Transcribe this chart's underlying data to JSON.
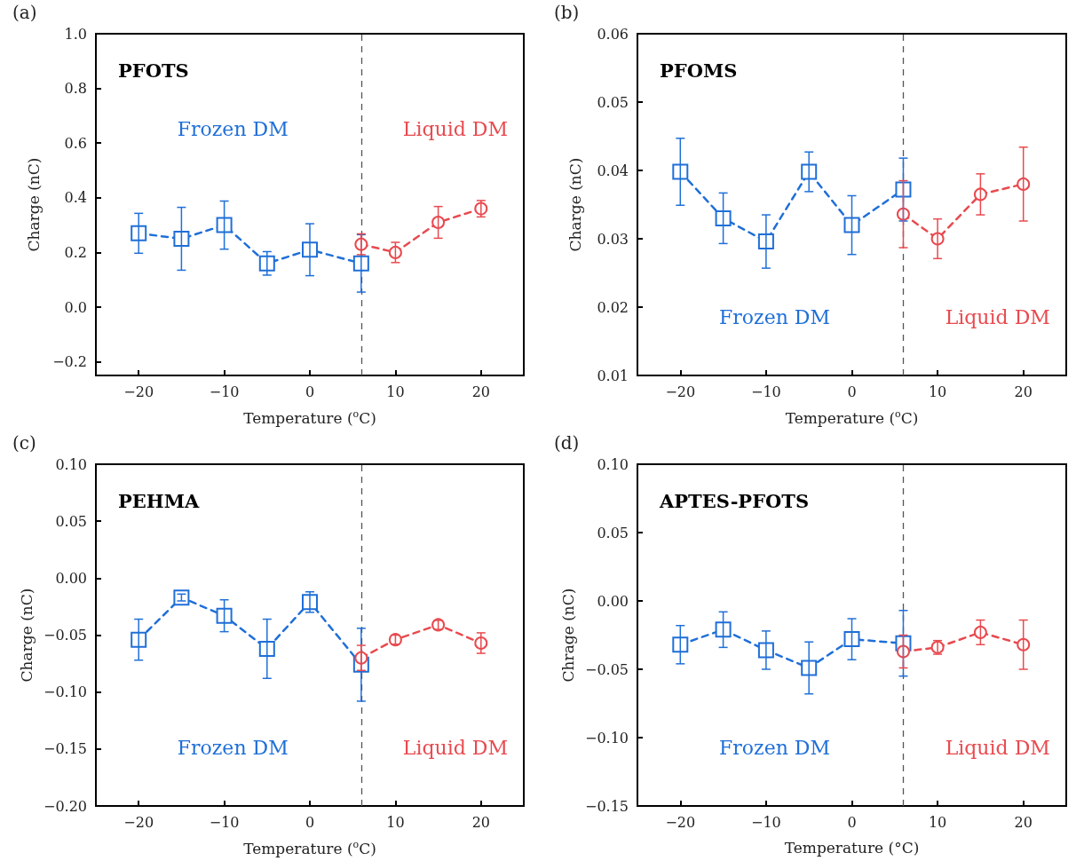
{
  "chart_data": [
    {
      "type": "line",
      "title": "PFOTS",
      "xlabel": "Temperature ($^{o}$C)",
      "ylabel": "Charge (nC)",
      "annotations": [
        "(a)",
        "Frozen DM",
        "Liquid DM"
      ],
      "xlim": [
        -25,
        25
      ],
      "xticks": [
        -20,
        -10,
        0,
        10,
        20
      ],
      "ylim": [
        -0.25,
        1.0
      ],
      "yticks": [
        {
          "value": -0.2,
          "label": "−0.2"
        },
        {
          "value": 0,
          "label": "0.0"
        },
        0.2,
        0.4,
        0.6,
        0.8,
        {
          "value": 1,
          "label": "1.0"
        }
      ],
      "line_style": "dashed",
      "grid": false,
      "ref_lines": [
        {
          "axis": "x",
          "value": 6,
          "color": "#555555",
          "line_style": "dashed"
        }
      ],
      "series": [
        {
          "color": "#1f6fd8",
          "marker": "square",
          "x": [
            -20,
            -15,
            -10,
            -5,
            0,
            6
          ],
          "values": [
            0.27,
            0.25,
            0.3,
            0.16,
            0.21,
            0.16
          ],
          "errors": [
            0.073,
            0.115,
            0.088,
            0.043,
            0.095,
            0.105
          ]
        },
        {
          "color": "#e84a4f",
          "marker": "circle",
          "x": [
            6,
            10,
            15,
            20
          ],
          "values": [
            0.23,
            0.2,
            0.31,
            0.36
          ],
          "errors": [
            0.038,
            0.037,
            0.058,
            0.03
          ]
        }
      ]
    },
    {
      "type": "line",
      "title": "PFOMS",
      "xlabel": "Temperature ($^{o}$C)",
      "ylabel": "Charge (nC)",
      "annotations": [
        "(b)",
        "Frozen DM",
        "Liquid DM"
      ],
      "xlim": [
        -25,
        25
      ],
      "xticks": [
        -20,
        -10,
        0,
        10,
        20
      ],
      "ylim": [
        0.01,
        0.06
      ],
      "yticks": [
        0.01,
        0.02,
        0.03,
        0.04,
        0.05,
        0.06
      ],
      "line_style": "dashed",
      "grid": false,
      "ref_lines": [
        {
          "axis": "x",
          "value": 6,
          "color": "#555555",
          "line_style": "dashed"
        }
      ],
      "series": [
        {
          "color": "#1f6fd8",
          "marker": "square",
          "x": [
            -20,
            -15,
            -10,
            -5,
            0,
            6
          ],
          "values": [
            0.0398,
            0.033,
            0.0296,
            0.0398,
            0.032,
            0.0372
          ],
          "errors": [
            0.0049,
            0.0037,
            0.0039,
            0.0029,
            0.0043,
            0.0046
          ]
        },
        {
          "color": "#e84a4f",
          "marker": "circle",
          "x": [
            6,
            10,
            15,
            20
          ],
          "values": [
            0.0336,
            0.03,
            0.0365,
            0.038
          ],
          "errors": [
            0.0049,
            0.0029,
            0.003,
            0.0054
          ]
        }
      ]
    },
    {
      "type": "line",
      "title": "PEHMA",
      "xlabel": "Temperature ($^{o}$C)",
      "ylabel": "Charge (nC)",
      "annotations": [
        "(c)",
        "Frozen DM",
        "Liquid DM"
      ],
      "xlim": [
        -25,
        25
      ],
      "xticks": [
        -20,
        -10,
        0,
        10,
        20
      ],
      "ylim": [
        -0.2,
        0.1
      ],
      "yticks": [
        {
          "value": -0.2,
          "label": "−0.20"
        },
        {
          "value": -0.15,
          "label": "−0.15"
        },
        {
          "value": -0.1,
          "label": "−0.10"
        },
        {
          "value": -0.05,
          "label": "−0.05"
        },
        {
          "value": 0,
          "label": "0.00"
        },
        0.05,
        {
          "value": 0.1,
          "label": "0.10"
        }
      ],
      "line_style": "dashed",
      "grid": false,
      "ref_lines": [
        {
          "axis": "x",
          "value": 6,
          "color": "#555555",
          "line_style": "dashed"
        }
      ],
      "series": [
        {
          "color": "#1f6fd8",
          "marker": "square",
          "x": [
            -20,
            -15,
            -10,
            -5,
            0,
            6
          ],
          "values": [
            -0.054,
            -0.017,
            -0.033,
            -0.062,
            -0.021,
            -0.076
          ],
          "errors": [
            0.018,
            0.003,
            0.014,
            0.026,
            0.009,
            0.032
          ]
        },
        {
          "color": "#e84a4f",
          "marker": "circle",
          "x": [
            6,
            10,
            15,
            20
          ],
          "values": [
            -0.07,
            -0.054,
            -0.041,
            -0.057
          ],
          "errors": [
            0.011,
            0.004,
            0.004,
            0.009
          ]
        }
      ]
    },
    {
      "type": "line",
      "title": "APTES-PFOTS",
      "xlabel": "Temperature (°C)",
      "ylabel": "Chrage (nC)",
      "annotations": [
        "(d)",
        "Frozen DM",
        "Liquid DM"
      ],
      "xlim": [
        -25,
        25
      ],
      "xticks": [
        -20,
        -10,
        0,
        10,
        20
      ],
      "ylim": [
        -0.15,
        0.1
      ],
      "yticks": [
        {
          "value": -0.15,
          "label": "−0.15"
        },
        {
          "value": -0.1,
          "label": "−0.10"
        },
        {
          "value": -0.05,
          "label": "−0.05"
        },
        {
          "value": 0,
          "label": "0.00"
        },
        0.05,
        {
          "value": 0.1,
          "label": "0.10"
        }
      ],
      "line_style": "dashed",
      "grid": false,
      "ref_lines": [
        {
          "axis": "x",
          "value": 6,
          "color": "#555555",
          "line_style": "dashed"
        }
      ],
      "series": [
        {
          "color": "#1f6fd8",
          "marker": "square",
          "x": [
            -20,
            -15,
            -10,
            -5,
            0,
            6
          ],
          "values": [
            -0.032,
            -0.021,
            -0.036,
            -0.049,
            -0.028,
            -0.031
          ],
          "errors": [
            0.014,
            0.013,
            0.014,
            0.019,
            0.015,
            0.024
          ]
        },
        {
          "color": "#e84a4f",
          "marker": "circle",
          "x": [
            6,
            10,
            15,
            20
          ],
          "values": [
            -0.037,
            -0.034,
            -0.023,
            -0.032
          ],
          "errors": [
            0.012,
            0.005,
            0.009,
            0.018
          ]
        }
      ]
    }
  ]
}
